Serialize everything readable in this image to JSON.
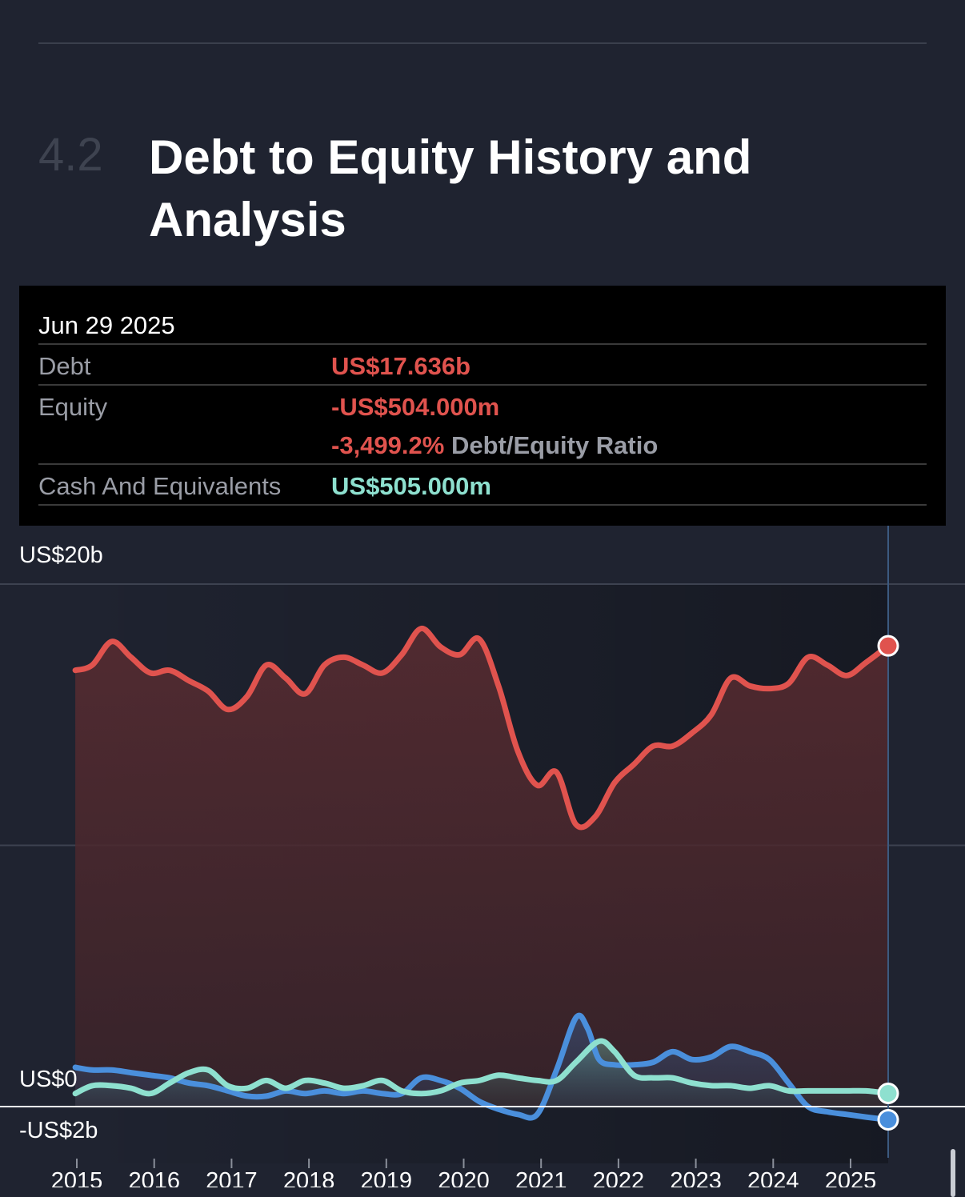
{
  "section": {
    "number": "4.2",
    "title": "Debt to Equity History and Analysis"
  },
  "tooltip": {
    "date": "Jun 29 2025",
    "debt_label": "Debt",
    "debt_value": "US$17.636b",
    "equity_label": "Equity",
    "equity_value": "-US$504.000m",
    "ratio_value": "-3,499.2%",
    "ratio_label": "Debt/Equity Ratio",
    "cash_label": "Cash And Equivalents",
    "cash_value": "US$505.000m"
  },
  "colors": {
    "debt": "#e0534e",
    "equity": "#4a8fdc",
    "cash": "#8ee0cf",
    "background": "#1f2330"
  },
  "chart_data": {
    "type": "area",
    "y_unit": "US$ billions",
    "ylim": [
      -2,
      20
    ],
    "y_tick_labels": [
      {
        "value": 20,
        "label": "US$20b"
      },
      {
        "value": 0,
        "label": "US$0"
      },
      {
        "value": -2,
        "label": "-US$2b"
      }
    ],
    "x_tick_labels": [
      "2015",
      "2016",
      "2017",
      "2018",
      "2019",
      "2020",
      "2021",
      "2022",
      "2023",
      "2024",
      "2025"
    ],
    "series": [
      {
        "name": "Debt",
        "x": [
          2014.98,
          2015.2,
          2015.45,
          2015.7,
          2015.95,
          2016.2,
          2016.45,
          2016.7,
          2016.95,
          2017.2,
          2017.45,
          2017.7,
          2017.95,
          2018.2,
          2018.45,
          2018.7,
          2018.95,
          2019.2,
          2019.45,
          2019.7,
          2019.95,
          2020.2,
          2020.45,
          2020.7,
          2020.95,
          2021.2,
          2021.45,
          2021.7,
          2021.95,
          2022.2,
          2022.45,
          2022.7,
          2022.95,
          2023.2,
          2023.45,
          2023.7,
          2023.95,
          2024.2,
          2024.45,
          2024.7,
          2024.95,
          2025.2,
          2025.45
        ],
        "y": [
          16.7,
          16.9,
          17.8,
          17.2,
          16.6,
          16.7,
          16.3,
          15.9,
          15.2,
          15.7,
          16.9,
          16.4,
          15.8,
          16.9,
          17.2,
          16.9,
          16.6,
          17.3,
          18.3,
          17.6,
          17.3,
          17.9,
          16.1,
          13.6,
          12.3,
          12.8,
          10.8,
          11.1,
          12.4,
          13.1,
          13.8,
          13.8,
          14.3,
          15.0,
          16.4,
          16.1,
          16.0,
          16.2,
          17.2,
          16.9,
          16.5,
          17.0,
          17.636
        ]
      },
      {
        "name": "Equity",
        "x": [
          2014.98,
          2015.2,
          2015.45,
          2015.7,
          2015.95,
          2016.2,
          2016.45,
          2016.7,
          2016.95,
          2017.2,
          2017.45,
          2017.7,
          2017.95,
          2018.2,
          2018.45,
          2018.7,
          2018.95,
          2019.2,
          2019.45,
          2019.7,
          2019.95,
          2020.2,
          2020.45,
          2020.7,
          2020.95,
          2021.2,
          2021.45,
          2021.6,
          2021.75,
          2021.95,
          2022.2,
          2022.45,
          2022.7,
          2022.95,
          2023.2,
          2023.45,
          2023.7,
          2023.95,
          2024.2,
          2024.45,
          2024.7,
          2024.95,
          2025.2,
          2025.45
        ],
        "y": [
          1.5,
          1.4,
          1.4,
          1.3,
          1.2,
          1.1,
          0.9,
          0.8,
          0.6,
          0.4,
          0.4,
          0.6,
          0.5,
          0.6,
          0.5,
          0.6,
          0.5,
          0.5,
          1.1,
          1.0,
          0.7,
          0.2,
          -0.1,
          -0.3,
          -0.3,
          1.4,
          3.4,
          3.0,
          1.8,
          1.6,
          1.6,
          1.7,
          2.1,
          1.8,
          1.9,
          2.3,
          2.1,
          1.8,
          0.9,
          0.0,
          -0.2,
          -0.3,
          -0.4,
          -0.504
        ]
      },
      {
        "name": "Cash And Equivalents",
        "x": [
          2014.98,
          2015.2,
          2015.45,
          2015.7,
          2015.95,
          2016.2,
          2016.45,
          2016.7,
          2016.95,
          2017.2,
          2017.45,
          2017.7,
          2017.95,
          2018.2,
          2018.45,
          2018.7,
          2018.95,
          2019.2,
          2019.45,
          2019.7,
          2019.95,
          2020.2,
          2020.45,
          2020.7,
          2020.95,
          2021.2,
          2021.45,
          2021.75,
          2021.95,
          2022.2,
          2022.45,
          2022.7,
          2022.95,
          2023.2,
          2023.45,
          2023.7,
          2023.95,
          2024.2,
          2024.45,
          2024.7,
          2024.95,
          2025.2,
          2025.45
        ],
        "y": [
          0.5,
          0.8,
          0.8,
          0.7,
          0.5,
          0.9,
          1.3,
          1.4,
          0.8,
          0.7,
          1.0,
          0.7,
          1.0,
          0.9,
          0.7,
          0.8,
          1.0,
          0.6,
          0.5,
          0.6,
          0.9,
          1.0,
          1.2,
          1.1,
          1.0,
          1.0,
          1.7,
          2.5,
          2.1,
          1.2,
          1.1,
          1.1,
          0.9,
          0.8,
          0.8,
          0.7,
          0.8,
          0.6,
          0.6,
          0.6,
          0.6,
          0.6,
          0.505
        ]
      }
    ],
    "grid": true,
    "highlighted_date": "Jun 29 2025"
  }
}
